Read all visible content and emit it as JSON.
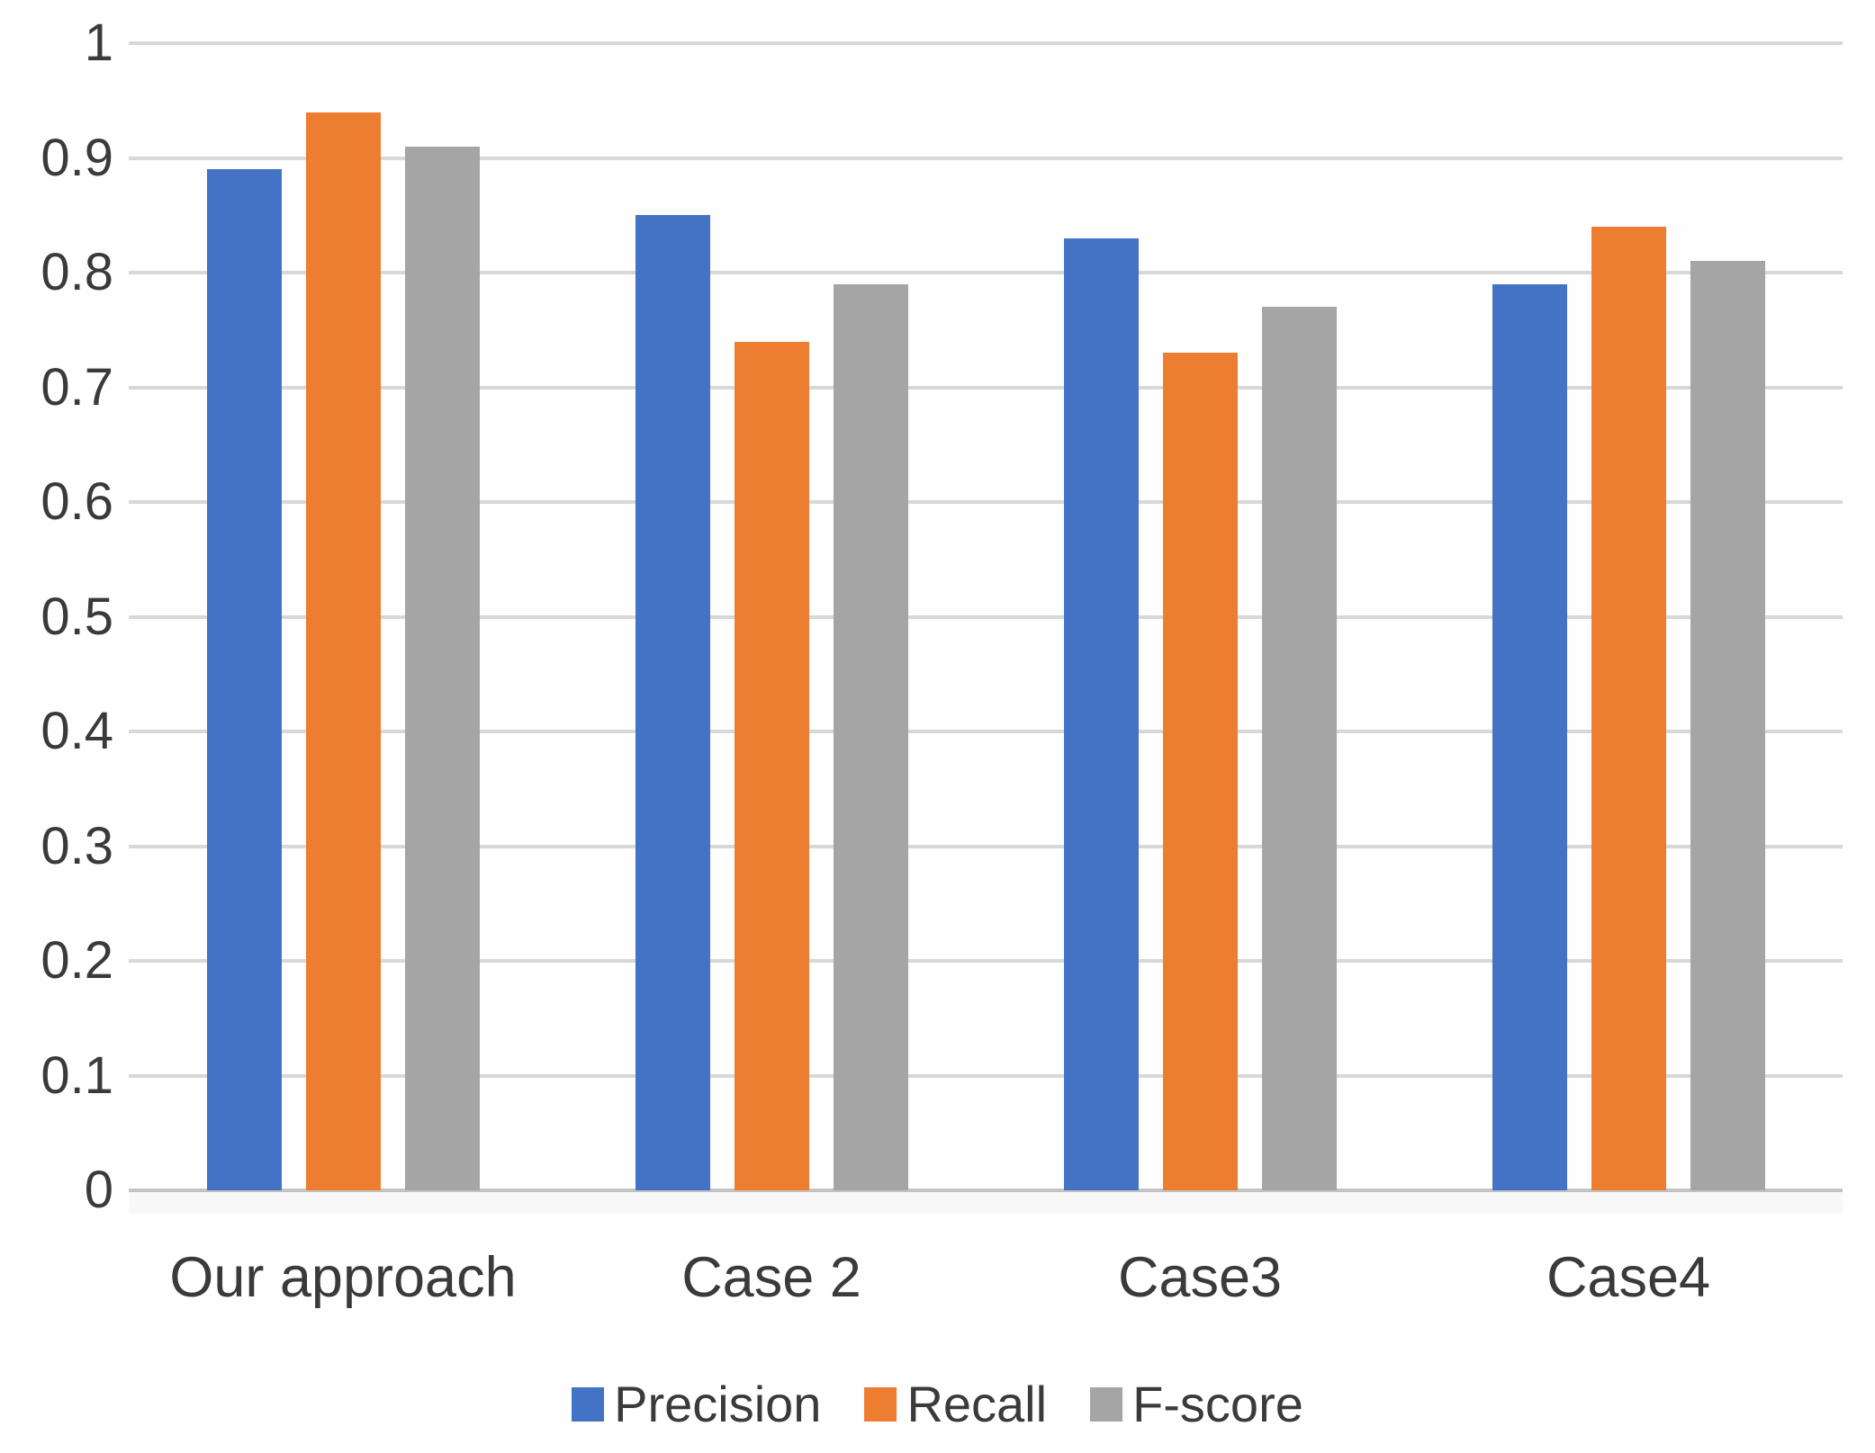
{
  "chart_data": {
    "type": "bar",
    "title": "",
    "xlabel": "",
    "ylabel": "",
    "categories": [
      "Our approach",
      "Case 2",
      "Case3",
      "Case4"
    ],
    "series": [
      {
        "name": "Precision",
        "color": "#4472C4",
        "values": [
          0.89,
          0.85,
          0.83,
          0.79
        ]
      },
      {
        "name": "Recall",
        "color": "#ED7D31",
        "values": [
          0.94,
          0.74,
          0.73,
          0.84
        ]
      },
      {
        "name": "F-score",
        "color": "#A5A5A5",
        "values": [
          0.91,
          0.79,
          0.77,
          0.81
        ]
      }
    ],
    "ylim": [
      0,
      1
    ],
    "ytick_step": 0.1,
    "ytick_labels": [
      "0",
      "0.1",
      "0.2",
      "0.3",
      "0.4",
      "0.5",
      "0.6",
      "0.7",
      "0.8",
      "0.9",
      "1"
    ],
    "grid": true,
    "legend_position": "bottom",
    "colors": {
      "gridline": "#d8d8d8",
      "axis_line": "#c6c6c6",
      "text": "#3a3a3a",
      "background": "#fefefe"
    }
  }
}
